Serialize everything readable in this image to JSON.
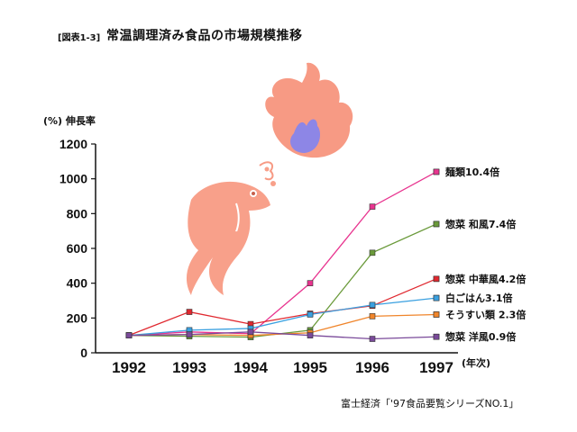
{
  "figure_label": "[図表1-3]",
  "title": "常温調理済み食品の市場規模推移",
  "source": "富士経済「'97食品要覧シリーズNO.1」",
  "chart_data": {
    "type": "line",
    "ylabel": "(%) 伸長率",
    "x_unit": "(年次)",
    "ylim": [
      0,
      1200
    ],
    "yticks": [
      0,
      200,
      400,
      600,
      800,
      1000,
      1200
    ],
    "categories": [
      "1992",
      "1993",
      "1994",
      "1995",
      "1996",
      "1997"
    ],
    "grid": false,
    "legend": "end-of-line labels",
    "series": [
      {
        "name": "麺類10.4倍",
        "color": "#e8348f",
        "values": [
          100,
          120,
          110,
          400,
          840,
          1040
        ]
      },
      {
        "name": "惣菜 和風7.4倍",
        "color": "#6a9a3a",
        "values": [
          100,
          95,
          90,
          130,
          575,
          740
        ]
      },
      {
        "name": "惣菜 中華風4.2倍",
        "color": "#e0282f",
        "values": [
          100,
          235,
          165,
          225,
          270,
          425
        ]
      },
      {
        "name": "白ごはん3.1倍",
        "color": "#3aa0e0",
        "values": [
          100,
          130,
          140,
          220,
          275,
          315
        ]
      },
      {
        "name": "そうすい類 2.3倍",
        "color": "#f0852b",
        "values": [
          100,
          105,
          100,
          115,
          210,
          220
        ]
      },
      {
        "name": "惣菜 洋風0.9倍",
        "color": "#7a4a9a",
        "values": [
          100,
          105,
          120,
          100,
          80,
          92
        ]
      }
    ]
  }
}
